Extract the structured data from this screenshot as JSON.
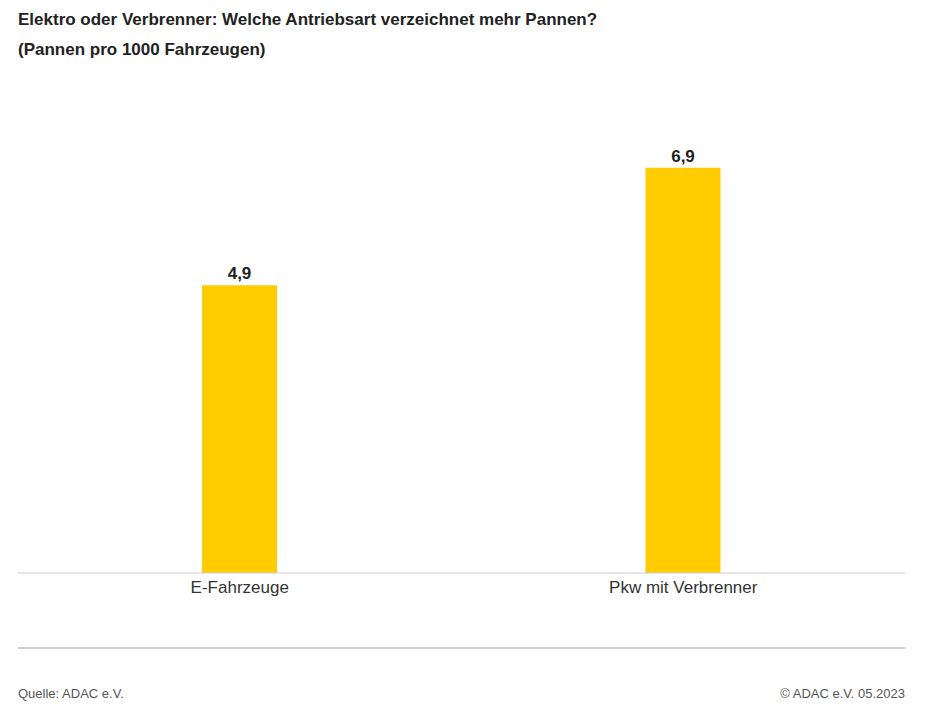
{
  "chart_data": {
    "type": "bar",
    "title": "Elektro oder Verbrenner: Welche Antriebsart verzeichnet mehr Pannen?",
    "subtitle": "(Pannen pro 1000 Fahrzeugen)",
    "categories": [
      "E-Fahrzeuge",
      "Pkw mit Verbrenner"
    ],
    "values": [
      4.9,
      6.9
    ],
    "value_labels": [
      "4,9",
      "6,9"
    ],
    "color": "#ffcc00",
    "ylim": [
      0,
      8
    ],
    "yticks": [
      0,
      8
    ],
    "grid": false,
    "data_labels": true,
    "tick_labels": "x",
    "source": "Quelle: ADAC e.V.",
    "copyright": "© ADAC e.V. 05.2023"
  }
}
